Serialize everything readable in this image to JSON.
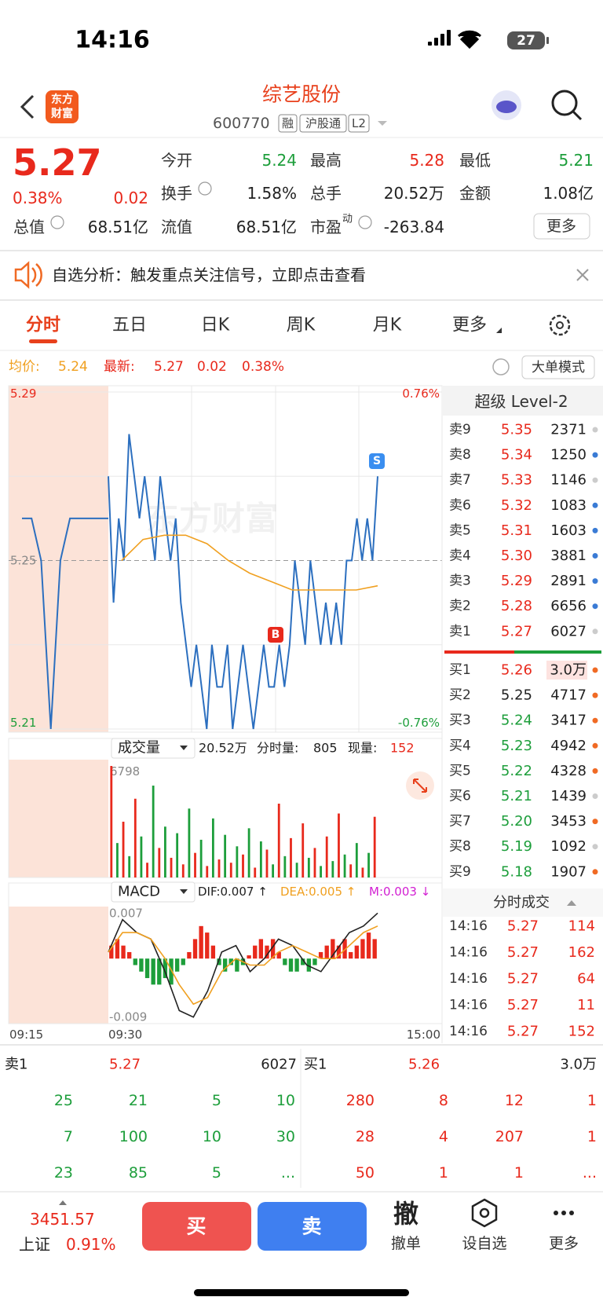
{
  "status_bar": {
    "time": "14:16",
    "battery": "27"
  },
  "header": {
    "logo": [
      "东方",
      "财富"
    ],
    "title": "综艺股份",
    "code": "600770",
    "badges": [
      "融",
      "沪股通",
      "L2"
    ]
  },
  "quote": {
    "price": "5.27",
    "change_pct": "0.38%",
    "change": "0.02",
    "stats": [
      {
        "label": "今开",
        "value": "5.24",
        "color": "#1d9e3b"
      },
      {
        "label": "最高",
        "value": "5.28",
        "color": "#e8291c"
      },
      {
        "label": "最低",
        "value": "5.21",
        "color": "#1d9e3b"
      },
      {
        "label": "换手",
        "value": "1.58%"
      },
      {
        "label": "总手",
        "value": "20.52万"
      },
      {
        "label": "金额",
        "value": "1.08亿"
      },
      {
        "label": "总值",
        "value": "68.51亿"
      },
      {
        "label": "流值",
        "value": "68.51亿"
      },
      {
        "label": "市盈",
        "sup": "动",
        "value": "-263.84"
      }
    ],
    "more": "更多"
  },
  "notice": "自选分析：触发重点关注信号，立即点击查看",
  "tabs": {
    "items": [
      "分时",
      "五日",
      "日K",
      "周K",
      "月K",
      "更多"
    ],
    "active": 0
  },
  "info_bar": {
    "avg_label": "均价:",
    "avg": "5.24",
    "last_label": "最新:",
    "last": "5.27",
    "change": "0.02",
    "change_pct": "0.38%",
    "mode_button": "大单模式"
  },
  "chart_data": [
    {
      "type": "line",
      "ylim": [
        5.21,
        5.29
      ],
      "yticks": [
        5.29,
        5.25,
        5.21
      ],
      "pct_labels": [
        "0.76%",
        "-0.76%"
      ],
      "watermark": "东方财富",
      "markers": [
        "B",
        "S"
      ],
      "x_labels": [
        "09:15",
        "09:30",
        "15:00"
      ],
      "series": [
        {
          "color": "#2c6fbf",
          "values": [
            5.26,
            5.26,
            5.25,
            5.21,
            5.25,
            5.26,
            5.26,
            5.26,
            5.26,
            5.26
          ]
        },
        {
          "color": "#2c6fbf",
          "values": [
            5.27,
            5.24,
            5.26,
            5.25,
            5.28,
            5.27,
            5.26,
            5.27,
            5.26,
            5.25,
            5.27,
            5.26,
            5.25,
            5.26,
            5.24,
            5.23,
            5.22,
            5.23,
            5.22,
            5.21,
            5.23,
            5.22,
            5.22,
            5.23,
            5.21,
            5.22,
            5.23,
            5.22,
            5.21,
            5.22,
            5.23,
            5.22,
            5.22,
            5.23,
            5.22,
            5.23,
            5.25,
            5.24,
            5.23,
            5.25,
            5.24,
            5.23,
            5.24,
            5.23,
            5.24,
            5.23,
            5.25,
            5.25,
            5.26,
            5.25,
            5.26,
            5.25,
            5.27
          ]
        },
        {
          "color": "#f0a020",
          "values": [
            5.25,
            5.255,
            5.256,
            5.256,
            5.254,
            5.25,
            5.247,
            5.245,
            5.243,
            5.243,
            5.243,
            5.243,
            5.244
          ]
        }
      ]
    },
    {
      "type": "bar",
      "title": "成交量",
      "total": "20.52万",
      "minute_label": "分时量:",
      "minute": "805",
      "current_label": "现量:",
      "current": "152",
      "ylim": [
        0,
        6798
      ],
      "yticks": [
        6798
      ],
      "series": [
        {
          "color": "#e8291c",
          "values": [
            6798,
            3400,
            4800,
            900,
            1800,
            1200,
            800,
            1500,
            700,
            1100,
            900,
            1400,
            600,
            1700,
            4500,
            2400,
            3300,
            1800,
            2500,
            3900,
            800,
            600,
            3700
          ]
        },
        {
          "color": "#1d9e3b",
          "values": [
            2100,
            1300,
            2500,
            5600,
            3100,
            2700,
            4200,
            2300,
            3600,
            2600,
            1900,
            3000,
            2200,
            800,
            1300,
            900,
            1200,
            700,
            1000,
            1400,
            2100,
            1500
          ]
        }
      ]
    },
    {
      "type": "macd",
      "title": "MACD",
      "ylim": [
        -0.01,
        0.008
      ],
      "yticks": [
        0.007,
        -0.009
      ],
      "hist_label": "M:0.003 ↓",
      "hist_colors": [
        "#e8291c",
        "#1d9e3b"
      ],
      "hist": [
        0.002,
        0.003,
        0.002,
        0.001,
        -0.001,
        -0.002,
        -0.003,
        -0.004,
        -0.004,
        -0.003,
        -0.004,
        -0.002,
        -0.001,
        0.001,
        0.003,
        0.005,
        0.004,
        0.002,
        -0.001,
        -0.002,
        -0.001,
        -0.002,
        -0.001,
        0.0005,
        0.002,
        0.003,
        0.002,
        0.003,
        0.001,
        -0.001,
        -0.002,
        -0.002,
        -0.001,
        -0.002,
        -0.001,
        0.001,
        0.002,
        0.003,
        0.002,
        0.003,
        0.001,
        0.002,
        0.003,
        0.004,
        0.003
      ],
      "series": [
        {
          "name": "DIF:0.007 ↑",
          "color": "#222222",
          "values": [
            0.001,
            0.006,
            0.004,
            0.003,
            -0.002,
            -0.008,
            -0.009,
            -0.005,
            0.001,
            0.002,
            -0.002,
            0,
            0.003,
            0.002,
            -0.001,
            -0.002,
            0.001,
            0.004,
            0.005,
            0.007
          ]
        },
        {
          "name": "DEA:0.005 ↑",
          "color": "#f0a020",
          "values": [
            0.001,
            0.004,
            0.004,
            0.003,
            0,
            -0.004,
            -0.007,
            -0.006,
            -0.002,
            0,
            -0.001,
            -0.001,
            0.001,
            0.002,
            0.001,
            0,
            0,
            0.002,
            0.004,
            0.005
          ]
        }
      ]
    }
  ],
  "level2": {
    "title": "超级 Level-2",
    "sell": [
      {
        "label": "卖9",
        "price": "5.35",
        "vol": "2371",
        "dot": "#cccccc"
      },
      {
        "label": "卖8",
        "price": "5.34",
        "vol": "1250",
        "dot": "#3a7bd5"
      },
      {
        "label": "卖7",
        "price": "5.33",
        "vol": "1146",
        "dot": "#cccccc"
      },
      {
        "label": "卖6",
        "price": "5.32",
        "vol": "1083",
        "dot": "#3a7bd5"
      },
      {
        "label": "卖5",
        "price": "5.31",
        "vol": "1603",
        "dot": "#3a7bd5"
      },
      {
        "label": "卖4",
        "price": "5.30",
        "vol": "3881",
        "dot": "#3a7bd5"
      },
      {
        "label": "卖3",
        "price": "5.29",
        "vol": "2891",
        "dot": "#3a7bd5"
      },
      {
        "label": "卖2",
        "price": "5.28",
        "vol": "6656",
        "dot": "#3a7bd5"
      },
      {
        "label": "卖1",
        "price": "5.27",
        "vol": "6027",
        "dot": "#cccccc"
      }
    ],
    "buy": [
      {
        "label": "买1",
        "price": "5.26",
        "vol": "3.0万",
        "dot": "#f06a24",
        "color": "#e8291c"
      },
      {
        "label": "买2",
        "price": "5.25",
        "vol": "4717",
        "dot": "#f06a24",
        "color": "#222222"
      },
      {
        "label": "买3",
        "price": "5.24",
        "vol": "3417",
        "dot": "#f06a24",
        "color": "#1d9e3b"
      },
      {
        "label": "买4",
        "price": "5.23",
        "vol": "4942",
        "dot": "#f06a24",
        "color": "#1d9e3b"
      },
      {
        "label": "买5",
        "price": "5.22",
        "vol": "4328",
        "dot": "#f06a24",
        "color": "#1d9e3b"
      },
      {
        "label": "买6",
        "price": "5.21",
        "vol": "1439",
        "dot": "#cccccc",
        "color": "#1d9e3b"
      },
      {
        "label": "买7",
        "price": "5.20",
        "vol": "3453",
        "dot": "#f06a24",
        "color": "#1d9e3b"
      },
      {
        "label": "买8",
        "price": "5.19",
        "vol": "1092",
        "dot": "#cccccc",
        "color": "#1d9e3b"
      },
      {
        "label": "买9",
        "price": "5.18",
        "vol": "1907",
        "dot": "#f06a24",
        "color": "#1d9e3b"
      }
    ],
    "trades_title": "分时成交",
    "trades": [
      {
        "time": "14:16",
        "price": "5.27",
        "vol": "114"
      },
      {
        "time": "14:16",
        "price": "5.27",
        "vol": "162"
      },
      {
        "time": "14:16",
        "price": "5.27",
        "vol": "64"
      },
      {
        "time": "14:16",
        "price": "5.27",
        "vol": "11"
      },
      {
        "time": "14:16",
        "price": "5.27",
        "vol": "152"
      }
    ]
  },
  "orders": {
    "sell_label": "卖1",
    "sell_price": "5.27",
    "sell_vol": "6027",
    "buy_label": "买1",
    "buy_price": "5.26",
    "buy_vol": "3.0万",
    "sell_queue": [
      [
        "25",
        "21",
        "5",
        "10"
      ],
      [
        "7",
        "100",
        "10",
        "30"
      ],
      [
        "23",
        "85",
        "5",
        "..."
      ]
    ],
    "buy_queue": [
      [
        "280",
        "8",
        "12",
        "1"
      ],
      [
        "28",
        "4",
        "207",
        "1"
      ],
      [
        "50",
        "1",
        "1",
        "..."
      ]
    ]
  },
  "toolbar": {
    "index_value": "3451.57",
    "index_name": "上证",
    "index_pct": "0.91%",
    "buy": "买",
    "sell": "卖",
    "cancel_icon": "撤",
    "cancel": "撤单",
    "watch": "设自选",
    "more": "更多"
  }
}
